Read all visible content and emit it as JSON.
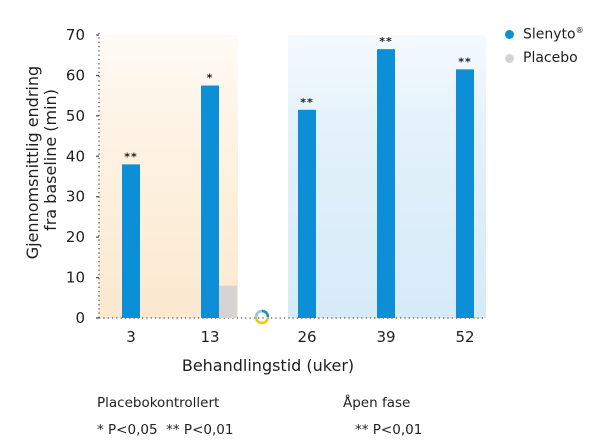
{
  "chart_data": {
    "type": "bar",
    "categories": [
      "3",
      "13",
      "26",
      "39",
      "52"
    ],
    "series": [
      {
        "name": "Slenyto®",
        "color": "#0c8fd6",
        "values": [
          38,
          57.5,
          51.5,
          66.5,
          61.5
        ]
      },
      {
        "name": "Placebo",
        "color": "#d4d4d4",
        "values": [
          null,
          8,
          null,
          null,
          null
        ]
      }
    ],
    "significance": [
      "**",
      "*",
      "**",
      "**",
      "**"
    ],
    "xlabel": "Behandlingstid (uker)",
    "ylabel_lines": [
      "Gjennomsnittlig endring",
      "fra baseline (min)"
    ],
    "ylim": [
      0,
      70
    ],
    "yticks": [
      0,
      10,
      20,
      30,
      40,
      50,
      60,
      70
    ],
    "legend_position": "top-right",
    "phase_background_colors": [
      "#fdf3e4",
      "#e3f1fb"
    ]
  },
  "legend": {
    "slenyto_name": "Slenyto",
    "slenyto_mark": "®",
    "placebo": "Placebo"
  },
  "footnotes": {
    "placebo_phase_title": "Placebokontrollert",
    "placebo_phase_sig": "* P<0,05  ** P<0,01",
    "open_phase_title": "Åpen fase",
    "open_phase_sig": "** P<0,01"
  }
}
